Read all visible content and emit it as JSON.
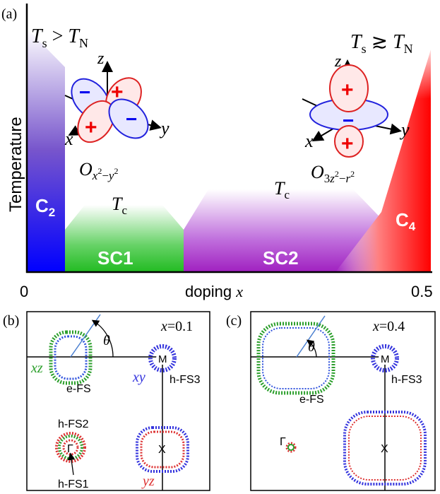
{
  "panel_a": {
    "label": "(a)",
    "ylabel": "Temperature",
    "x_start": "0",
    "x_end": "0.5",
    "xlabel_word": "doping ",
    "xlabel_var": "x",
    "ts_gt_tn": "T_s > T_N",
    "ts_ge_tn": "T_s ≳ T_N",
    "region_c2": "C2",
    "region_c4": "C4",
    "region_sc1": "SC1",
    "region_sc2": "SC2",
    "tc_label": "T_c",
    "orbital_left_label": "O_{x²−y²}",
    "orbital_right_label": "O_{3z²−r²}",
    "axis_x": "x",
    "axis_y": "y",
    "axis_z": "z",
    "plus": "+",
    "minus": "−",
    "colors": {
      "c2": "#0000ff",
      "sc1": "#22bb22",
      "sc2": "#a020c0",
      "c4": "#ff0000"
    }
  },
  "panel_b": {
    "label": "(b)",
    "doping": "x=0.1",
    "theta": "θ",
    "xz": "xz",
    "xy": "xy",
    "yz": "yz",
    "e_fs": "e-FS",
    "h_fs1": "h-FS1",
    "h_fs2": "h-FS2",
    "h_fs3": "h-FS3",
    "gamma": "Γ",
    "m": "M",
    "x_point": "X"
  },
  "panel_c": {
    "label": "(c)",
    "doping": "x=0.4",
    "theta": "θ",
    "e_fs": "e-FS",
    "h_fs3": "h-FS3",
    "gamma": "Γ",
    "m": "M",
    "x_point": "X"
  }
}
